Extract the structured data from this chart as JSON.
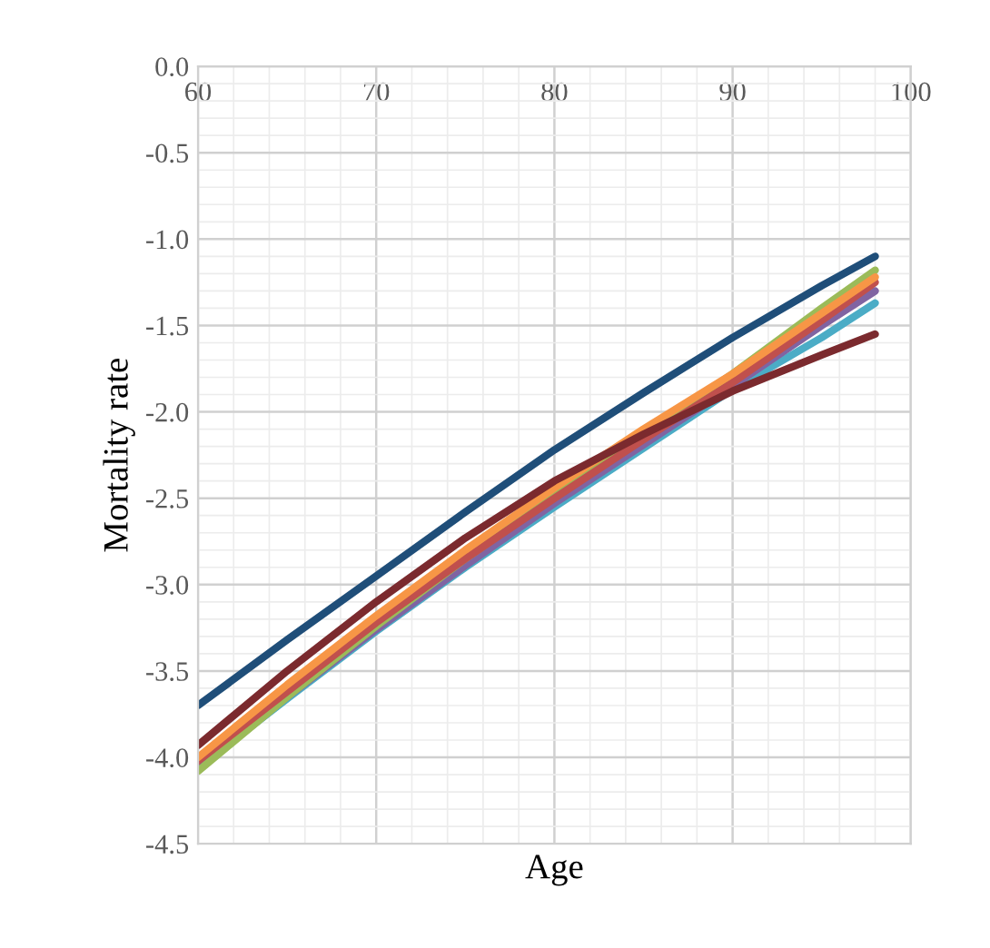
{
  "chart_data": {
    "type": "line",
    "xlabel": "Age",
    "ylabel": "Mortality rate",
    "x": [
      60,
      65,
      70,
      75,
      80,
      85,
      90,
      95,
      98
    ],
    "xlim": [
      60,
      100
    ],
    "xticks": [
      60,
      70,
      80,
      90,
      100
    ],
    "ylim": [
      -4.5,
      0
    ],
    "yticks": [
      {
        "value": 0,
        "label": "0.0"
      },
      {
        "value": -0.5,
        "label": "-0.5"
      },
      {
        "value": -1,
        "label": "-1.0"
      },
      {
        "value": -1.5,
        "label": "-1.5"
      },
      {
        "value": -2,
        "label": "-2.0"
      },
      {
        "value": -2.5,
        "label": "-2.5"
      },
      {
        "value": -3,
        "label": "-3.0"
      },
      {
        "value": -3.5,
        "label": "-3.5"
      },
      {
        "value": -4,
        "label": "-4.0"
      },
      {
        "value": -4.5,
        "label": "-4.5"
      }
    ],
    "grid": true,
    "marker": "none",
    "line_style": "solid",
    "series": [
      {
        "color": "#4bacc6",
        "values": [
          -4.06,
          -3.66,
          -3.27,
          -2.9,
          -2.55,
          -2.21,
          -1.87,
          -1.57,
          -1.37
        ]
      },
      {
        "color": "#8064a2",
        "values": [
          -4.05,
          -3.65,
          -3.26,
          -2.89,
          -2.53,
          -2.19,
          -1.85,
          -1.5,
          -1.3
        ]
      },
      {
        "color": "#9bbb59",
        "values": [
          -4.08,
          -3.65,
          -3.24,
          -2.85,
          -2.49,
          -2.13,
          -1.78,
          -1.4,
          -1.18
        ]
      },
      {
        "color": "#c0504d",
        "values": [
          -4.02,
          -3.62,
          -3.22,
          -2.85,
          -2.5,
          -2.16,
          -1.83,
          -1.47,
          -1.25
        ]
      },
      {
        "color": "#f79646",
        "values": [
          -4.0,
          -3.58,
          -3.18,
          -2.8,
          -2.44,
          -2.1,
          -1.78,
          -1.43,
          -1.22
        ]
      },
      {
        "color": "#7b2a2e",
        "values": [
          -3.93,
          -3.5,
          -3.1,
          -2.73,
          -2.4,
          -2.13,
          -1.88,
          -1.67,
          -1.55
        ]
      },
      {
        "color": "#1f4e79",
        "values": [
          -3.7,
          -3.32,
          -2.95,
          -2.58,
          -2.22,
          -1.89,
          -1.57,
          -1.27,
          -1.1
        ]
      }
    ]
  }
}
